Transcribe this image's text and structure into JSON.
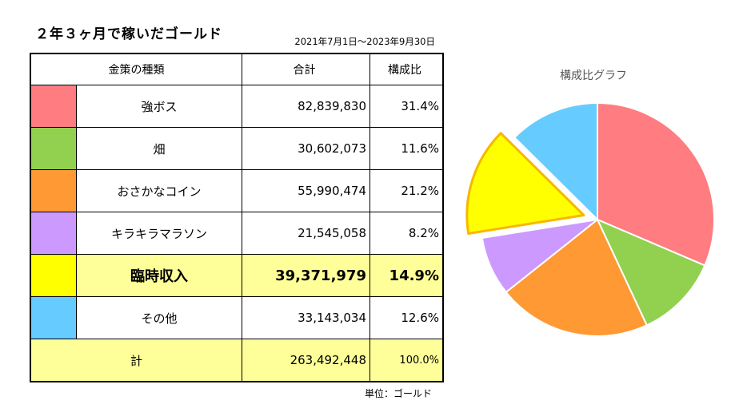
{
  "title": "２年３ヶ月で稼いだゴールド",
  "period": "2021年7月1日～2023年9月30日",
  "table": {
    "headers": [
      "金策の種類",
      "合計",
      "構成比"
    ],
    "rows": [
      {
        "name": "強ボス",
        "total": "82,839,830",
        "ratio": "31.4%",
        "color": "#ff7c80",
        "highlight": false
      },
      {
        "name": "畑",
        "total": "30,602,073",
        "ratio": "11.6%",
        "color": "#92d050",
        "highlight": false
      },
      {
        "name": "おさかなコイン",
        "total": "55,990,474",
        "ratio": "21.2%",
        "color": "#ff9933",
        "highlight": false
      },
      {
        "name": "キラキラマラソン",
        "total": "21,545,058",
        "ratio": "8.2%",
        "color": "#cc99ff",
        "highlight": false
      },
      {
        "name": "臨時収入",
        "total": "39,371,979",
        "ratio": "14.9%",
        "color": "#ffff00",
        "highlight": true
      },
      {
        "name": "その他",
        "total": "33,143,034",
        "ratio": "12.6%",
        "color": "#66ccff",
        "highlight": false
      }
    ],
    "sum": {
      "name": "計",
      "total": "263,492,448",
      "ratio": "100.0%"
    }
  },
  "unit": "単位：ゴールド",
  "chart_data": {
    "type": "pie",
    "title": "構成比グラフ",
    "categories": [
      "強ボス",
      "畑",
      "おさかなコイン",
      "キラキラマラソン",
      "臨時収入",
      "その他"
    ],
    "values": [
      82839830,
      30602073,
      55990474,
      21545058,
      39371979,
      33143034
    ],
    "colors": [
      "#ff7c80",
      "#92d050",
      "#ff9933",
      "#cc99ff",
      "#ffff00",
      "#66ccff"
    ],
    "exploded": "臨時収入",
    "legend": "none"
  }
}
